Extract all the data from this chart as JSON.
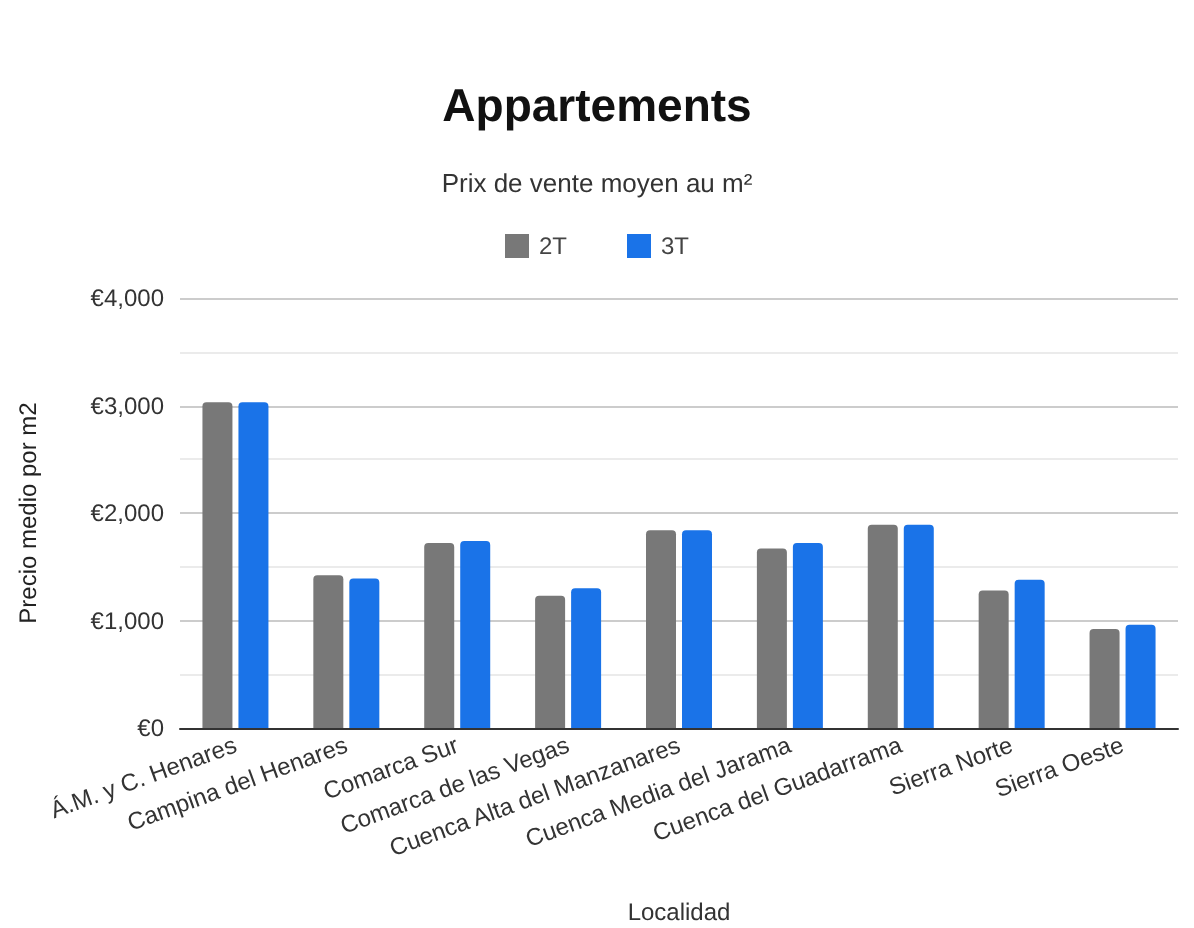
{
  "chart_data": {
    "type": "bar",
    "title": "Appartements",
    "subtitle": "Prix de vente moyen au m²",
    "xlabel": "Localidad",
    "ylabel": "Precio medio por m2",
    "categories": [
      "Á.M. y C. Henares",
      "Campina del Henares",
      "Comarca Sur",
      "Comarca de las Vegas",
      "Cuenca Alta del Manzanares",
      "Cuenca Media del Jarama",
      "Cuenca del Guadarrama",
      "Sierra Norte",
      "Sierra Oeste"
    ],
    "series": [
      {
        "name": "2T",
        "color": "#787878",
        "values": [
          3030,
          1420,
          1720,
          1230,
          1840,
          1670,
          1890,
          1280,
          920
        ]
      },
      {
        "name": "3T",
        "color": "#1a73e8",
        "values": [
          3030,
          1390,
          1740,
          1300,
          1840,
          1720,
          1890,
          1380,
          960
        ]
      }
    ],
    "ylim": [
      0,
      4000
    ],
    "yticks": [
      {
        "value": 0,
        "label": "€0"
      },
      {
        "value": 500,
        "label": null
      },
      {
        "value": 1000,
        "label": "€1,000"
      },
      {
        "value": 1500,
        "label": null
      },
      {
        "value": 2000,
        "label": "€2,000"
      },
      {
        "value": 2500,
        "label": null
      },
      {
        "value": 3000,
        "label": "€3,000"
      },
      {
        "value": 3500,
        "label": null
      },
      {
        "value": 4000,
        "label": "€4,000"
      }
    ],
    "grid": "y",
    "legend": "top"
  }
}
